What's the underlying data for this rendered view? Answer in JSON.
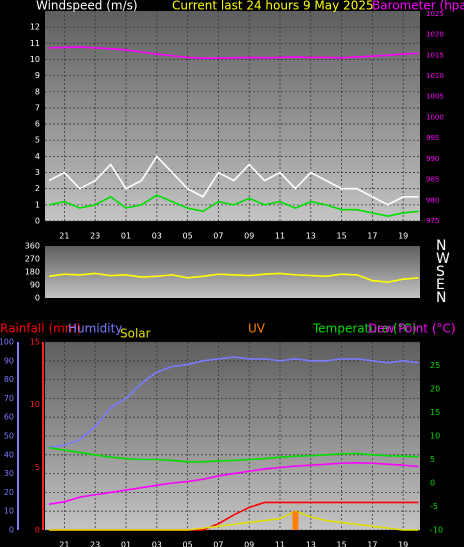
{
  "chart_data": [
    {
      "type": "line",
      "title": "Current last 24 hours 9 May 2025",
      "ylabel": "Windspeed (m/s)",
      "y2label": "Barometer (hpa)",
      "categories": [
        null,
        "21",
        null,
        "23",
        null,
        "01",
        null,
        "03",
        null,
        "05",
        null,
        "07",
        null,
        "09",
        null,
        "11",
        null,
        "13",
        null,
        "15",
        null,
        "17",
        null,
        "19",
        null
      ],
      "ylim": [
        0,
        13
      ],
      "yticks": [
        0,
        1,
        2,
        3,
        4,
        5,
        6,
        7,
        8,
        9,
        10,
        11,
        12
      ],
      "y_color": "#ffffff",
      "y2lim": [
        975,
        1025.7
      ],
      "y2ticks": [
        975,
        980,
        985,
        990,
        995,
        1000,
        1005,
        1010,
        1015,
        1020,
        1025
      ],
      "y2_color": "#ff00ff",
      "grid": true,
      "series": [
        {
          "color": "#ffffff",
          "axis": "y",
          "values": [
            2.5,
            3,
            2,
            2.5,
            3.5,
            2,
            2.5,
            4,
            3,
            2,
            1.5,
            3,
            2.5,
            3.5,
            2.5,
            3,
            2,
            3,
            2.5,
            2,
            2,
            1.5,
            1,
            1.5,
            1.5
          ]
        },
        {
          "color": "#00dd00",
          "axis": "y",
          "values": [
            1,
            1.2,
            0.8,
            1,
            1.5,
            0.8,
            1,
            1.6,
            1.2,
            0.8,
            0.6,
            1.2,
            1,
            1.4,
            1,
            1.2,
            0.8,
            1.2,
            1,
            0.7,
            0.7,
            0.5,
            0.3,
            0.5,
            0.6
          ]
        },
        {
          "color": "#ff00ff",
          "axis": "y2",
          "values": [
            1016.8,
            1016.9,
            1017,
            1016.8,
            1016.6,
            1016.3,
            1015.8,
            1015.3,
            1014.9,
            1014.5,
            1014.3,
            1014.3,
            1014.4,
            1014.5,
            1014.4,
            1014.5,
            1014.6,
            1014.5,
            1014.5,
            1014.4,
            1014.6,
            1014.8,
            1015,
            1015.3,
            1015.5
          ]
        }
      ]
    },
    {
      "type": "line",
      "ylim": [
        0,
        360
      ],
      "yticks": [
        0,
        90,
        180,
        270,
        360
      ],
      "y_color": "#ffffff",
      "y2lim": [
        0,
        360
      ],
      "y2ticks": [
        {
          "value": 0,
          "label": "N"
        },
        {
          "value": 90,
          "label": "E"
        },
        {
          "value": 180,
          "label": "S"
        },
        {
          "value": 270,
          "label": "W"
        },
        {
          "value": 360,
          "label": "N"
        }
      ],
      "y2_color": "#ffffff",
      "grid": false,
      "series": [
        {
          "color": "#ffff00",
          "axis": "y",
          "values": [
            150,
            165,
            160,
            170,
            155,
            160,
            145,
            150,
            160,
            140,
            150,
            165,
            160,
            155,
            165,
            170,
            160,
            155,
            150,
            165,
            160,
            120,
            110,
            130,
            140
          ]
        }
      ]
    },
    {
      "type": "line",
      "categories": [
        null,
        "21",
        null,
        "23",
        null,
        "01",
        null,
        "03",
        null,
        "05",
        null,
        "07",
        null,
        "09",
        null,
        "11",
        null,
        "13",
        null,
        "15",
        null,
        "17",
        null,
        "19",
        null
      ],
      "ylim": [
        0,
        100
      ],
      "yticks": [
        0,
        10,
        20,
        30,
        40,
        50,
        60,
        70,
        80,
        90,
        100
      ],
      "y_color": "#7b7bff",
      "y3lim": [
        0,
        15
      ],
      "y3ticks": [
        0,
        5,
        10,
        15
      ],
      "y3_color": "#ff2020",
      "y2lim": [
        -10,
        30
      ],
      "y2ticks": [
        -10,
        -5,
        0,
        5,
        10,
        15,
        20,
        25
      ],
      "y2_color": "#00dd00",
      "grid": true,
      "series": [
        {
          "name": "Rainfall (mm)",
          "color": "#ff0000",
          "axis": "y3",
          "values": [
            0,
            0,
            0,
            0,
            0,
            0,
            0,
            0,
            0,
            0,
            0,
            0.5,
            1.2,
            1.8,
            2.2,
            2.2,
            2.2,
            2.2,
            2.2,
            2.2,
            2.2,
            2.2,
            2.2,
            2.2,
            2.2
          ]
        },
        {
          "name": "Humidity",
          "color": "#7b7bff",
          "axis": "y",
          "values": [
            44,
            45,
            48,
            55,
            65,
            70,
            78,
            84,
            87,
            88,
            90,
            91,
            92,
            91,
            91,
            90,
            91,
            90,
            90,
            91,
            91,
            90,
            89,
            90,
            89
          ]
        },
        {
          "name": "Solar",
          "color": "#e0e000",
          "axis": "y",
          "values": [
            0,
            0,
            0,
            0,
            0,
            0,
            0,
            0,
            0,
            0,
            1,
            2,
            3,
            4,
            5,
            6,
            10,
            7,
            5,
            4,
            3,
            2,
            1,
            0,
            0
          ]
        },
        {
          "name": "UV",
          "color": "#ff8000",
          "axis": "y3",
          "kind": "bar",
          "values": [
            0,
            0,
            0,
            0,
            0,
            0,
            0,
            0,
            0,
            0,
            0,
            0,
            0,
            0,
            0,
            0,
            1.5,
            0,
            0,
            0,
            0,
            0,
            0,
            0,
            0
          ]
        },
        {
          "name": "Temperature (°C)",
          "color": "#00dd00",
          "axis": "y2",
          "values": [
            7.5,
            7,
            6.5,
            6,
            5.5,
            5.2,
            5,
            5,
            4.8,
            4.5,
            4.5,
            4.7,
            4.8,
            5,
            5.2,
            5.5,
            5.7,
            5.8,
            6,
            6.2,
            6.3,
            6,
            5.8,
            5.7,
            5.6
          ]
        },
        {
          "name": "Dew Point (°C)",
          "color": "#ff00ff",
          "axis": "y2",
          "values": [
            -4.5,
            -4,
            -3,
            -2.5,
            -2,
            -1.5,
            -1,
            -0.5,
            0,
            0.3,
            0.8,
            1.5,
            2,
            2.5,
            3,
            3.3,
            3.6,
            3.8,
            4,
            4.2,
            4.3,
            4.2,
            4,
            3.8,
            3.5
          ]
        }
      ]
    }
  ]
}
